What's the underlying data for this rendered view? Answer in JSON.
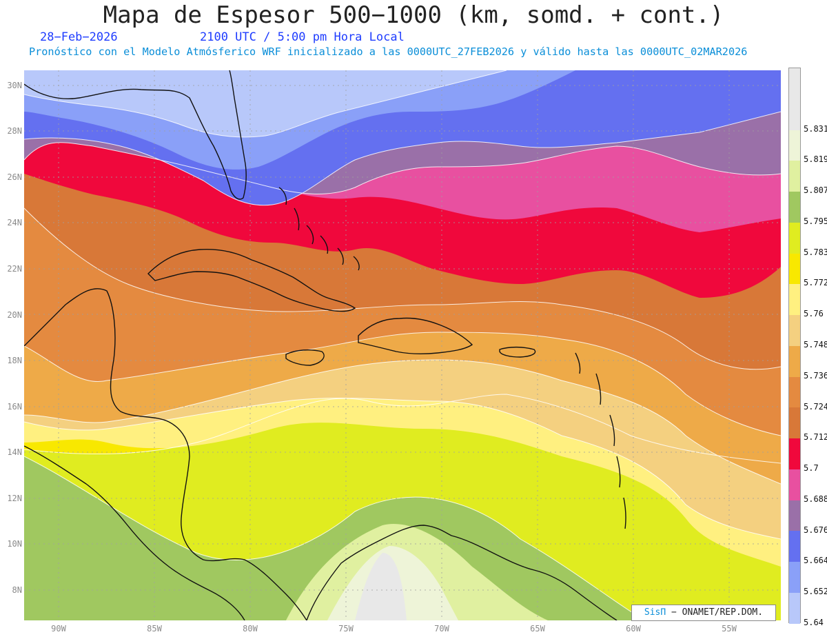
{
  "title": "Mapa de Espesor 500−1000 (km, somd. + cont.)",
  "date_label": "28−Feb−2026",
  "time_label": "2100 UTC / 5:00 pm Hora Local",
  "subtitle": "Pronóstico con el Modelo Atmósferico WRF inicializado a las 0000UTC_27FEB2026 y válido hasta las  0000UTC_02MAR2026",
  "credit": {
    "logo": "SisΠ",
    "text": " − ONAMET/REP.DOM."
  },
  "lat_labels": [
    "30N",
    "28N",
    "26N",
    "24N",
    "22N",
    "20N",
    "18N",
    "16N",
    "14N",
    "12N",
    "10N",
    "8N"
  ],
  "lon_labels": [
    "90W",
    "85W",
    "80W",
    "75W",
    "70W",
    "65W",
    "60W",
    "55W"
  ],
  "colorbar": {
    "levels": [
      "5.831",
      "5.819",
      "5.807",
      "5.795",
      "5.783",
      "5.772",
      "5.76",
      "5.748",
      "5.736",
      "5.724",
      "5.712",
      "5.7",
      "5.688",
      "5.676",
      "5.664",
      "5.652",
      "5.64"
    ],
    "colors_top_to_bottom": [
      "#e8e8e8",
      "#eef4d8",
      "#e0f0a0",
      "#a0c860",
      "#e0ec20",
      "#f8e800",
      "#fff080",
      "#f4d080",
      "#eeaa48",
      "#e48a40",
      "#d87838",
      "#f0083c",
      "#e850a0",
      "#9a70a8",
      "#6470f0",
      "#8aa0f8",
      "#b8c8fa"
    ]
  }
}
